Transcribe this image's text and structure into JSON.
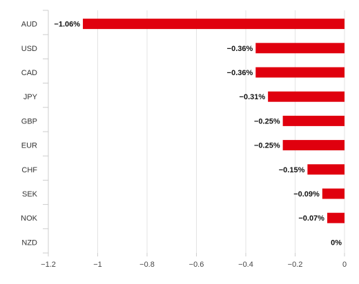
{
  "chart_data": {
    "type": "bar",
    "orientation": "horizontal",
    "categories": [
      "AUD",
      "USD",
      "CAD",
      "JPY",
      "GBP",
      "EUR",
      "CHF",
      "SEK",
      "NOK",
      "NZD"
    ],
    "values": [
      -1.06,
      -0.36,
      -0.36,
      -0.31,
      -0.25,
      -0.25,
      -0.15,
      -0.09,
      -0.07,
      0
    ],
    "data_labels": [
      "−1.06%",
      "−0.36%",
      "−0.36%",
      "−0.31%",
      "−0.25%",
      "−0.25%",
      "−0.15%",
      "−0.09%",
      "−0.07%",
      "0%"
    ],
    "xlim": [
      -1.2,
      0
    ],
    "x_ticks": [
      -1.2,
      -1,
      -0.8,
      -0.6,
      -0.4,
      -0.2,
      0
    ],
    "x_tick_labels": [
      "−1.2",
      "−1",
      "−0.8",
      "−0.6",
      "−0.4",
      "−0.2",
      "0"
    ],
    "title": "",
    "xlabel": "",
    "ylabel": "",
    "grid": "vertical",
    "legend": "none",
    "bar_color": "#e0000e"
  }
}
